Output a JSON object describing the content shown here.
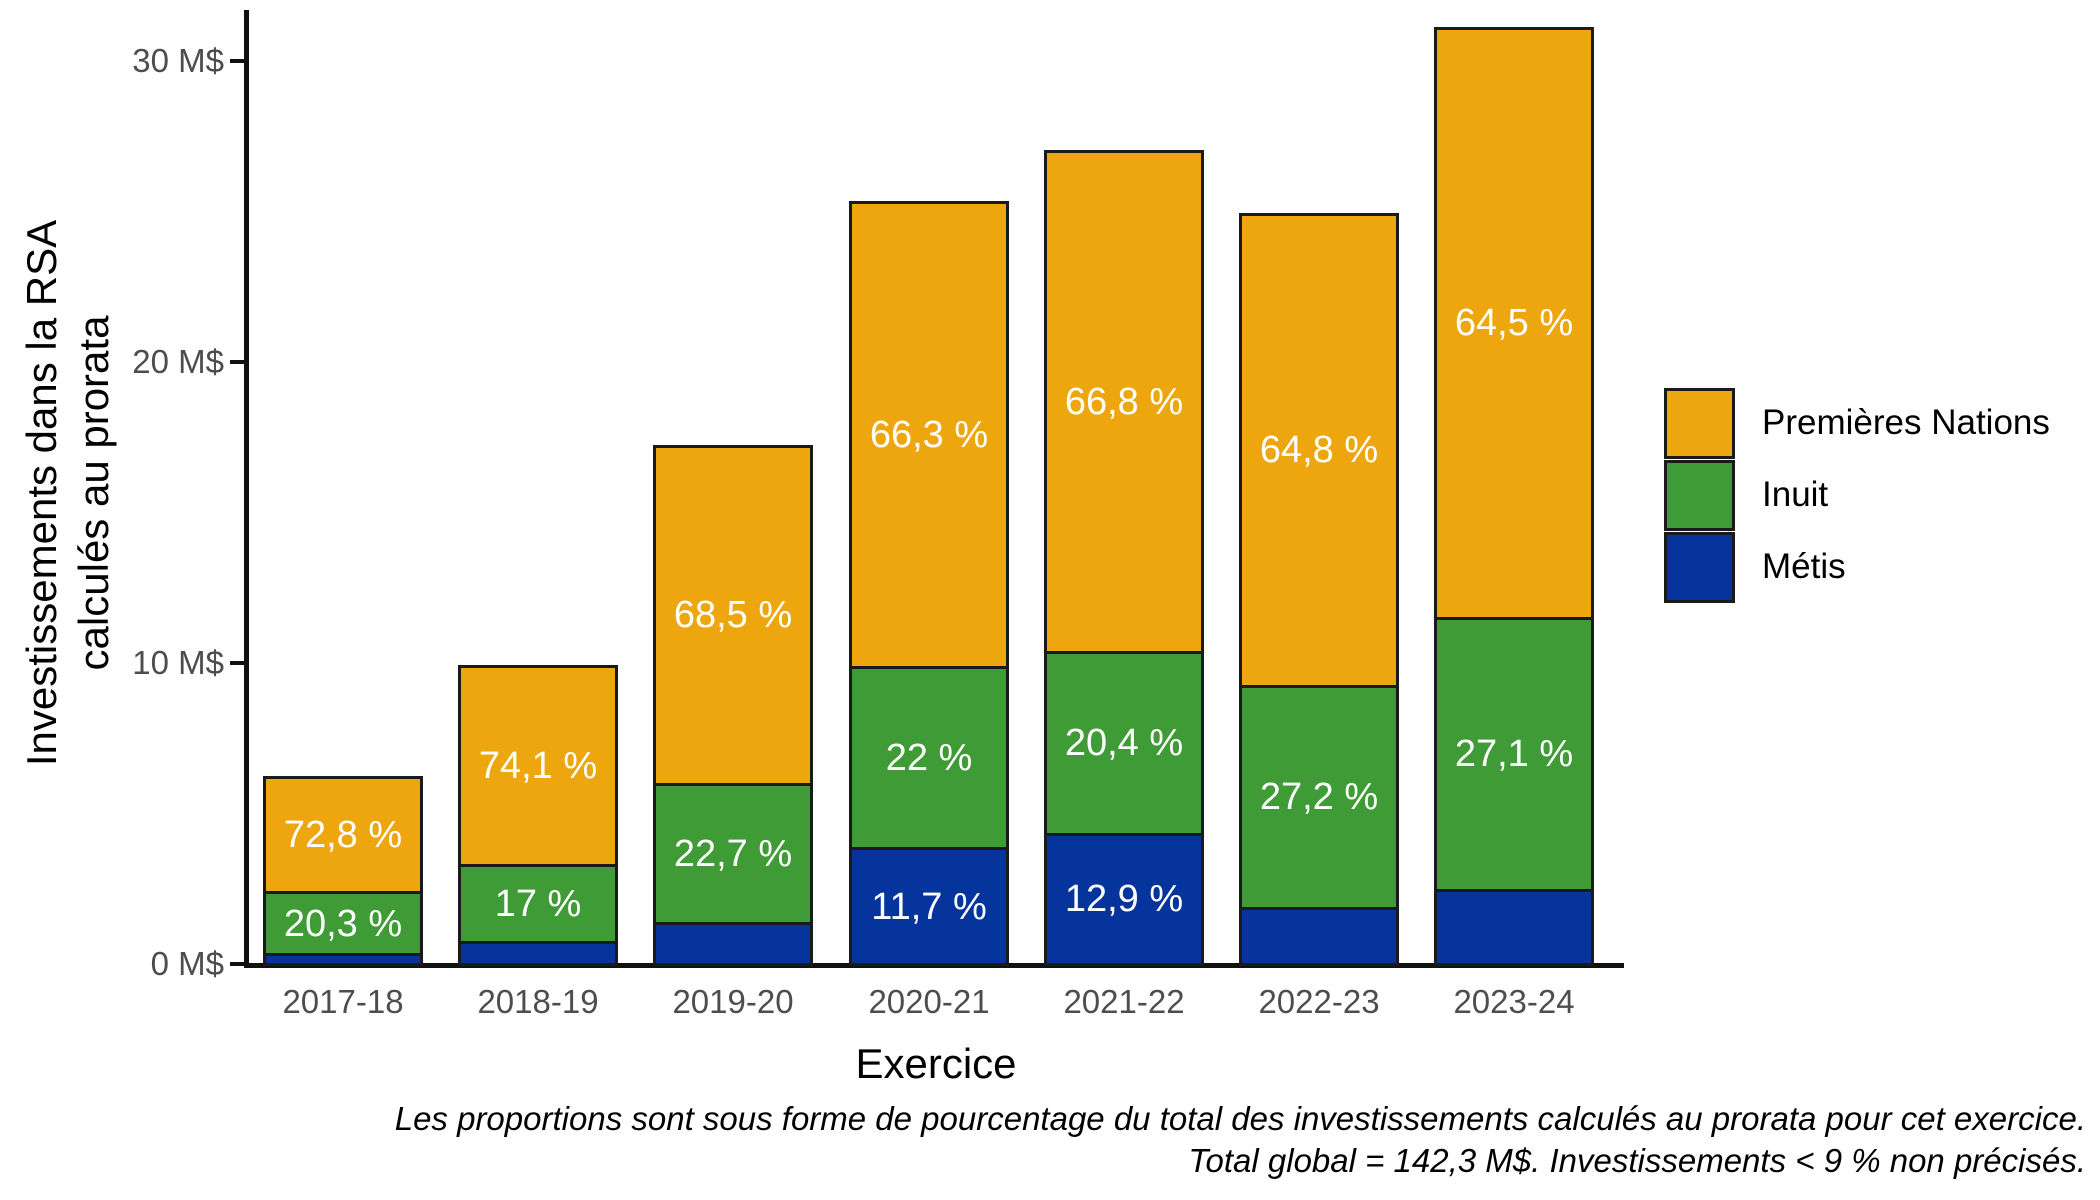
{
  "chart_data": {
    "type": "bar",
    "stacked": true,
    "title": "",
    "xlabel": "Exercice",
    "ylabel": "Investissements dans la RSA calculés au prorata",
    "ylabel_lines": [
      "Investissements dans la RSA",
      "calculés au prorata"
    ],
    "unit": "M$",
    "categories": [
      "2017-18",
      "2018-19",
      "2019-20",
      "2020-21",
      "2021-22",
      "2022-23",
      "2023-24"
    ],
    "totals_m": [
      6.3,
      10.0,
      17.3,
      25.4,
      27.1,
      25.0,
      31.2
    ],
    "series": [
      {
        "name": "Métis",
        "color": "#05349C",
        "values": [
          0.43,
          0.89,
          1.52,
          2.97,
          3.5,
          2.0,
          2.62
        ],
        "percent_labels": [
          "",
          "",
          "",
          "11,7 %",
          "12,9 %",
          "",
          ""
        ]
      },
      {
        "name": "Inuit",
        "color": "#3E9B36",
        "values": [
          1.28,
          1.7,
          3.93,
          5.59,
          5.53,
          6.8,
          8.46
        ],
        "percent_labels": [
          "20,3 %",
          "17 %",
          "22,7 %",
          "22 %",
          "20,4 %",
          "27,2 %",
          "27,1 %"
        ]
      },
      {
        "name": "Premières Nations",
        "color": "#EEA60E",
        "values": [
          4.59,
          7.41,
          11.85,
          16.84,
          18.07,
          16.2,
          20.12
        ],
        "percent_labels": [
          "72,8 %",
          "74,1 %",
          "68,5 %",
          "66,3 %",
          "66,8 %",
          "64,8 %",
          "64,5 %"
        ]
      }
    ],
    "y_ticks": [
      {
        "value": 0,
        "label": "0 M$"
      },
      {
        "value": 10,
        "label": "10 M$"
      },
      {
        "value": 20,
        "label": "20 M$"
      },
      {
        "value": 30,
        "label": "30 M$"
      }
    ],
    "ylim": [
      0,
      31.6
    ],
    "grid": "off",
    "legend_position": "right",
    "legend_order_top_to_bottom": [
      "Premières Nations",
      "Inuit",
      "Métis"
    ],
    "caption_lines": [
      "Les proportions sont sous forme de pourcentage du total des investissements calculés au prorata pour cet exercice.",
      "Total global = 142,3 M$. Investissements < 9 % non précisés."
    ]
  }
}
